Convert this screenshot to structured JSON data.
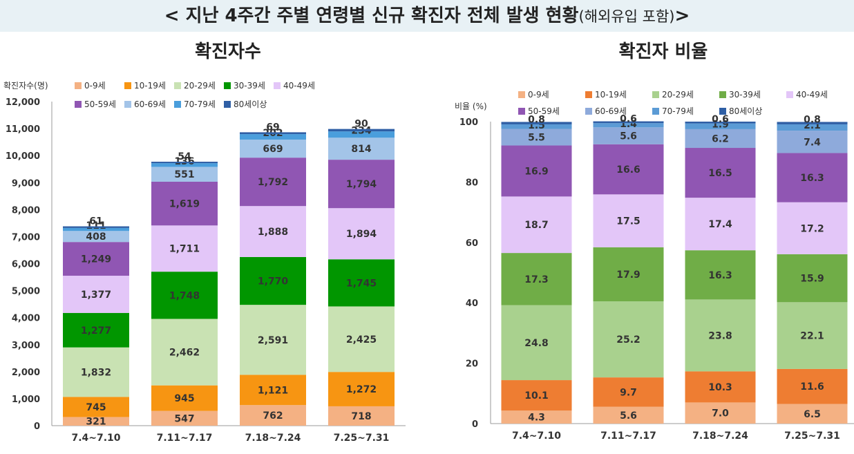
{
  "banner": {
    "main": "< 지난 4주간 주별 연령별 신규 확진자 전체 발생 현황",
    "sub": "(해외유입 포함)",
    "end": ">"
  },
  "colors": {
    "0-9": "#f4b183",
    "10-19": "#f79512",
    "20-29": "#c9e2b3",
    "30-39": "#019600",
    "40-49": "#e3c6f8",
    "50-59": "#9056b3",
    "60-69": "#a3c4e8",
    "70-79": "#4a9edc",
    "80+": "#2f5fa5"
  },
  "ratio_colors": {
    "0-9": "#f4b183",
    "10-19": "#ee7d32",
    "20-29": "#a9d18e",
    "30-39": "#70ad47",
    "40-49": "#e3c6f8",
    "50-59": "#9056b3",
    "60-69": "#8eaadb",
    "70-79": "#5b9bd5",
    "80+": "#2f5fa5"
  },
  "chart_data": [
    {
      "type": "bar",
      "stacked": true,
      "title": "확진자수",
      "ylabel": "확진자수(명)",
      "ylim": [
        0,
        12000
      ],
      "yticks": [
        "0",
        "1,000",
        "2,000",
        "3,000",
        "4,000",
        "5,000",
        "6,000",
        "7,000",
        "8,000",
        "9,000",
        "10,000",
        "11,000",
        "12,000"
      ],
      "categories": [
        "7.4~7.10",
        "7.11~7.17",
        "7.18~7.24",
        "7.25~7.31"
      ],
      "series": [
        {
          "name": "0-9세",
          "key": "0-9",
          "values": [
            321,
            547,
            762,
            718
          ],
          "labels": [
            "321",
            "547",
            "762",
            "718"
          ]
        },
        {
          "name": "10-19세",
          "key": "10-19",
          "values": [
            745,
            945,
            1121,
            1272
          ],
          "labels": [
            "745",
            "945",
            "1,121",
            "1,272"
          ]
        },
        {
          "name": "20-29세",
          "key": "20-29",
          "values": [
            1832,
            2462,
            2591,
            2425
          ],
          "labels": [
            "1,832",
            "2,462",
            "2,591",
            "2,425"
          ]
        },
        {
          "name": "30-39세",
          "key": "30-39",
          "values": [
            1277,
            1748,
            1770,
            1745
          ],
          "labels": [
            "1,277",
            "1,748",
            "1,770",
            "1,745"
          ]
        },
        {
          "name": "40-49세",
          "key": "40-49",
          "values": [
            1377,
            1711,
            1888,
            1894
          ],
          "labels": [
            "1,377",
            "1,711",
            "1,888",
            "1,894"
          ]
        },
        {
          "name": "50-59세",
          "key": "50-59",
          "values": [
            1249,
            1619,
            1792,
            1794
          ],
          "labels": [
            "1,249",
            "1,619",
            "1,792",
            "1,794"
          ]
        },
        {
          "name": "60-69세",
          "key": "60-69",
          "values": [
            408,
            551,
            669,
            814
          ],
          "labels": [
            "408",
            "551",
            "669",
            "814"
          ]
        },
        {
          "name": "70-79세",
          "key": "70-79",
          "values": [
            111,
            136,
            202,
            234
          ],
          "labels": [
            "111",
            "136",
            "202",
            "234"
          ]
        },
        {
          "name": "80세이상",
          "key": "80+",
          "values": [
            61,
            54,
            69,
            90
          ],
          "labels": [
            "61",
            "54",
            "69",
            "90"
          ]
        }
      ]
    },
    {
      "type": "bar",
      "stacked": true,
      "title": "확진자 비율",
      "ylabel": "비율 (%)",
      "ylim": [
        0,
        100
      ],
      "yticks": [
        "0",
        "20",
        "40",
        "60",
        "80",
        "100"
      ],
      "categories": [
        "7.4~7.10",
        "7.11~7.17",
        "7.18~7.24",
        "7.25~7.31"
      ],
      "series": [
        {
          "name": "0-9세",
          "key": "0-9",
          "values": [
            4.3,
            5.6,
            7.0,
            6.5
          ],
          "labels": [
            "4.3",
            "5.6",
            "7.0",
            "6.5"
          ]
        },
        {
          "name": "10-19세",
          "key": "10-19",
          "values": [
            10.1,
            9.7,
            10.3,
            11.6
          ],
          "labels": [
            "10.1",
            "9.7",
            "10.3",
            "11.6"
          ]
        },
        {
          "name": "20-29세",
          "key": "20-29",
          "values": [
            24.8,
            25.2,
            23.8,
            22.1
          ],
          "labels": [
            "24.8",
            "25.2",
            "23.8",
            "22.1"
          ]
        },
        {
          "name": "30-39세",
          "key": "30-39",
          "values": [
            17.3,
            17.9,
            16.3,
            15.9
          ],
          "labels": [
            "17.3",
            "17.9",
            "16.3",
            "15.9"
          ]
        },
        {
          "name": "40-49세",
          "key": "40-49",
          "values": [
            18.7,
            17.5,
            17.4,
            17.2
          ],
          "labels": [
            "18.7",
            "17.5",
            "17.4",
            "17.2"
          ]
        },
        {
          "name": "50-59세",
          "key": "50-59",
          "values": [
            16.9,
            16.6,
            16.5,
            16.3
          ],
          "labels": [
            "16.9",
            "16.6",
            "16.5",
            "16.3"
          ]
        },
        {
          "name": "60-69세",
          "key": "60-69",
          "values": [
            5.5,
            5.6,
            6.2,
            7.4
          ],
          "labels": [
            "5.5",
            "5.6",
            "6.2",
            "7.4"
          ]
        },
        {
          "name": "70-79세",
          "key": "70-79",
          "values": [
            1.5,
            1.4,
            1.9,
            2.1
          ],
          "labels": [
            "1.5",
            "1.4",
            "1.9",
            "2.1"
          ]
        },
        {
          "name": "80세이상",
          "key": "80+",
          "values": [
            0.8,
            0.6,
            0.6,
            0.8
          ],
          "labels": [
            "0.8",
            "0.6",
            "0.6",
            "0.8"
          ]
        }
      ]
    }
  ]
}
